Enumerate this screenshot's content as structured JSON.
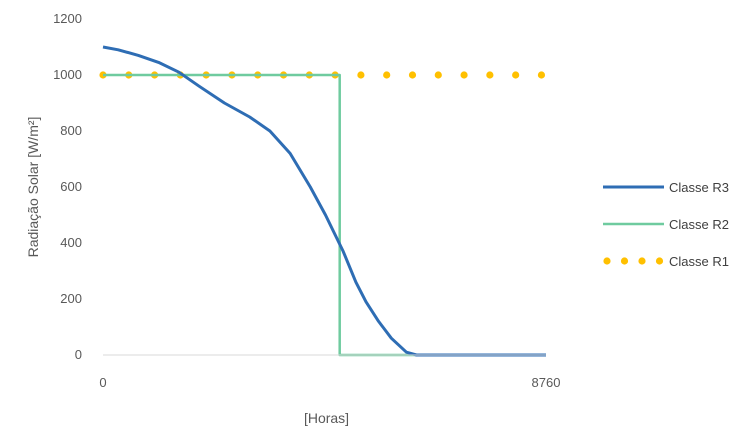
{
  "chart_data": {
    "type": "line",
    "title": "",
    "xlabel": "[Horas]",
    "ylabel": "Radiação Solar [W/m²]",
    "xlim": [
      0,
      8760
    ],
    "ylim": [
      0,
      1200
    ],
    "x_tick_labels": [
      "0",
      "8760"
    ],
    "y_tick_labels": [
      "0",
      "200",
      "400",
      "600",
      "800",
      "1000",
      "1200"
    ],
    "grid": false,
    "legend_position": "right",
    "series": [
      {
        "name": "Classe R3",
        "color": "#2E6DB4",
        "style": "solid",
        "x": [
          0,
          300,
          700,
          1100,
          1500,
          1900,
          2400,
          2900,
          3300,
          3700,
          4100,
          4400,
          4750,
          5000,
          5200,
          5450,
          5700,
          6000,
          6200,
          6400,
          6550,
          6600,
          8760
        ],
        "y": [
          1100,
          1090,
          1070,
          1045,
          1010,
          960,
          900,
          850,
          800,
          720,
          600,
          500,
          370,
          260,
          190,
          120,
          60,
          10,
          0,
          0,
          0,
          0,
          0
        ]
      },
      {
        "name": "Classe R2",
        "color": "#6FCB9F",
        "style": "solid",
        "x": [
          0,
          4680,
          4680,
          8760
        ],
        "y": [
          1000,
          1000,
          0,
          0
        ]
      },
      {
        "name": "Classe R1",
        "color": "#FFC000",
        "style": "dotted",
        "x": [
          0,
          8760
        ],
        "y": [
          1000,
          1000
        ]
      }
    ]
  }
}
